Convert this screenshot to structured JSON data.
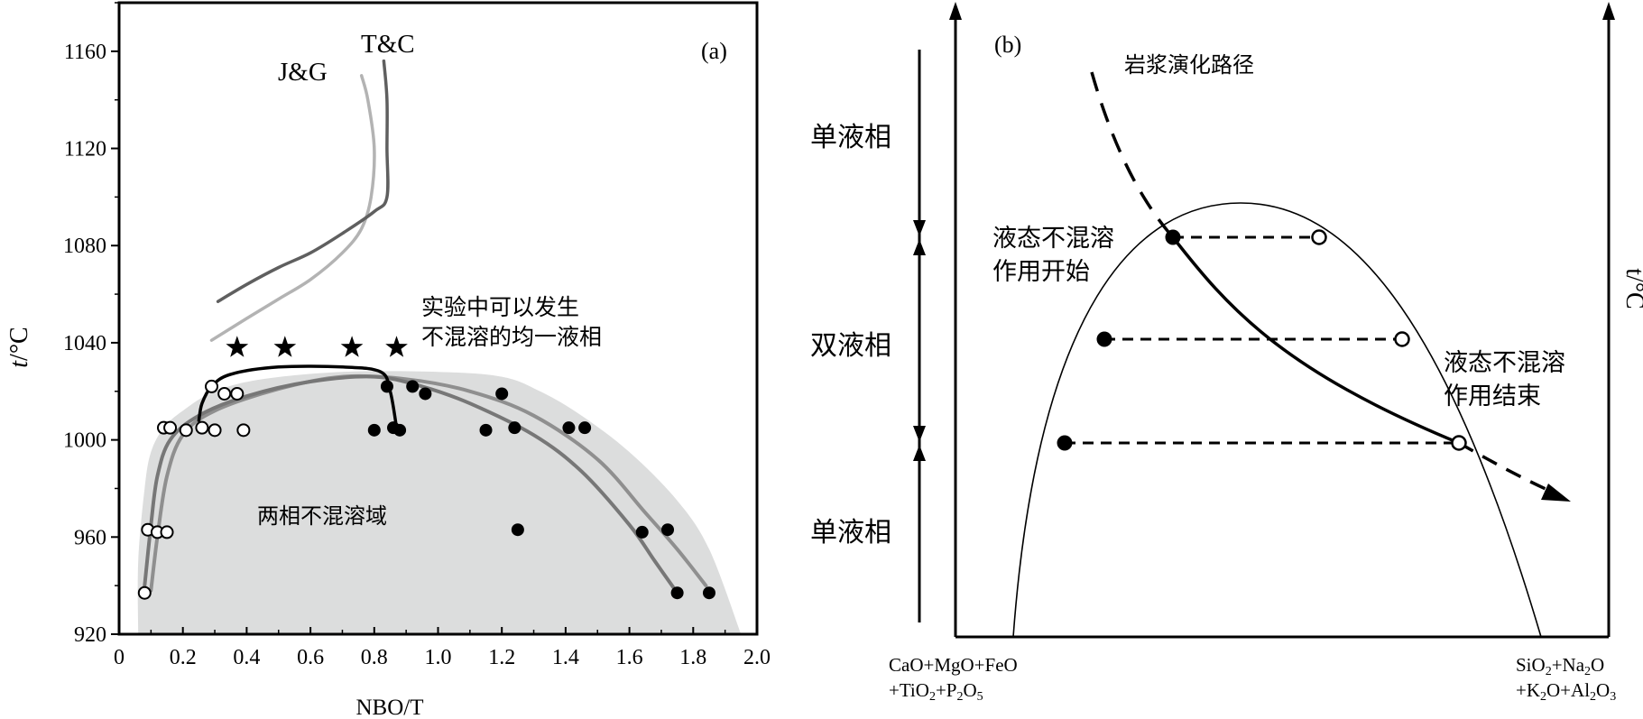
{
  "colors": {
    "region_fill": "#dcdddd",
    "jg_curve": "#b3b3b3",
    "tc_curve": "#5f5f5f",
    "mid_curve": "#777777",
    "black": "#000000"
  },
  "chart_data": [
    {
      "type": "scatter",
      "panel_label": "(a)",
      "xlabel": "NBO/T",
      "ylabel_italic": "t",
      "ylabel_unit": "/°C",
      "xlim": [
        0,
        2.0
      ],
      "ylim": [
        920,
        1180
      ],
      "x_ticks": [
        0,
        0.2,
        0.4,
        0.6,
        0.8,
        1.0,
        1.2,
        1.4,
        1.6,
        1.8,
        2.0
      ],
      "x_tick_labels": [
        "0",
        "0.2",
        "0.4",
        "0.6",
        "0.8",
        "1.0",
        "1.2",
        "1.4",
        "1.6",
        "1.8",
        "2.0"
      ],
      "y_ticks": [
        920,
        960,
        1000,
        1040,
        1080,
        1120,
        1160
      ],
      "y_tick_labels": [
        "920",
        "960",
        "1000",
        "1040",
        "1080",
        "1120",
        "1160"
      ],
      "region_label": "两相不混溶域",
      "star_label_line1": "实验中可以发生",
      "star_label_line2": "不混溶的均一液相",
      "curve_labels": [
        "J&G",
        "T&C"
      ],
      "region": [
        [
          0.06,
          920
        ],
        [
          0.06,
          950
        ],
        [
          0.08,
          980
        ],
        [
          0.1,
          995
        ],
        [
          0.14,
          1005
        ],
        [
          0.2,
          1012
        ],
        [
          0.3,
          1020
        ],
        [
          0.45,
          1025
        ],
        [
          0.7,
          1028
        ],
        [
          1.0,
          1028
        ],
        [
          1.2,
          1026
        ],
        [
          1.32,
          1020
        ],
        [
          1.45,
          1010
        ],
        [
          1.6,
          995
        ],
        [
          1.75,
          975
        ],
        [
          1.85,
          955
        ],
        [
          1.95,
          920
        ]
      ],
      "outer_curve": [
        [
          0.1,
          938
        ],
        [
          0.12,
          960
        ],
        [
          0.15,
          985
        ],
        [
          0.2,
          1002
        ],
        [
          0.3,
          1012
        ],
        [
          0.5,
          1021
        ],
        [
          0.7,
          1026
        ],
        [
          0.9,
          1025
        ],
        [
          1.1,
          1020
        ],
        [
          1.3,
          1010
        ],
        [
          1.5,
          992
        ],
        [
          1.65,
          970
        ],
        [
          1.75,
          955
        ],
        [
          1.84,
          940
        ]
      ],
      "inner_curve": [
        [
          0.08,
          940
        ],
        [
          0.1,
          965
        ],
        [
          0.12,
          985
        ],
        [
          0.16,
          1000
        ],
        [
          0.25,
          1010
        ],
        [
          0.4,
          1018
        ],
        [
          0.6,
          1024
        ],
        [
          0.8,
          1026
        ],
        [
          0.95,
          1022
        ],
        [
          1.1,
          1015
        ],
        [
          1.3,
          1002
        ],
        [
          1.45,
          987
        ],
        [
          1.6,
          965
        ],
        [
          1.68,
          950
        ],
        [
          1.75,
          937
        ]
      ],
      "black_curve": [
        [
          0.25,
          1008
        ],
        [
          0.26,
          1015
        ],
        [
          0.29,
          1022
        ],
        [
          0.35,
          1027
        ],
        [
          0.5,
          1030
        ],
        [
          0.7,
          1030
        ],
        [
          0.82,
          1028
        ],
        [
          0.85,
          1020
        ],
        [
          0.87,
          1005
        ]
      ],
      "jg_curve": [
        [
          0.29,
          1041
        ],
        [
          0.4,
          1050
        ],
        [
          0.5,
          1058
        ],
        [
          0.6,
          1066
        ],
        [
          0.7,
          1077
        ],
        [
          0.76,
          1087
        ],
        [
          0.79,
          1100
        ],
        [
          0.8,
          1120
        ],
        [
          0.78,
          1140
        ],
        [
          0.76,
          1150
        ]
      ],
      "tc_curve": [
        [
          0.31,
          1057
        ],
        [
          0.4,
          1064
        ],
        [
          0.5,
          1071
        ],
        [
          0.6,
          1077
        ],
        [
          0.7,
          1085
        ],
        [
          0.8,
          1094
        ],
        [
          0.84,
          1100
        ],
        [
          0.84,
          1120
        ],
        [
          0.84,
          1140
        ],
        [
          0.83,
          1156
        ]
      ],
      "stars": [
        [
          0.37,
          1038
        ],
        [
          0.52,
          1038
        ],
        [
          0.73,
          1038
        ],
        [
          0.87,
          1038
        ]
      ],
      "open_points": [
        [
          0.08,
          937
        ],
        [
          0.09,
          963
        ],
        [
          0.12,
          962
        ],
        [
          0.15,
          962
        ],
        [
          0.14,
          1005
        ],
        [
          0.16,
          1005
        ],
        [
          0.21,
          1004
        ],
        [
          0.26,
          1005
        ],
        [
          0.3,
          1004
        ],
        [
          0.39,
          1004
        ],
        [
          0.29,
          1022
        ],
        [
          0.33,
          1019
        ],
        [
          0.37,
          1019
        ]
      ],
      "filled_points": [
        [
          0.8,
          1004
        ],
        [
          0.86,
          1005
        ],
        [
          0.88,
          1004
        ],
        [
          0.84,
          1022
        ],
        [
          0.92,
          1022
        ],
        [
          0.96,
          1019
        ],
        [
          1.15,
          1004
        ],
        [
          1.2,
          1019
        ],
        [
          1.24,
          1005
        ],
        [
          1.25,
          963
        ],
        [
          1.41,
          1005
        ],
        [
          1.46,
          1005
        ],
        [
          1.64,
          962
        ],
        [
          1.72,
          963
        ],
        [
          1.75,
          937
        ],
        [
          1.85,
          937
        ]
      ]
    },
    {
      "type": "diagram",
      "panel_label": "(b)",
      "ylabel": "t/°C",
      "magma_path_label": "岩浆演化路径",
      "start_label_line1": "液态不混溶",
      "start_label_line2": "作用开始",
      "end_label_line1": "液态不混溶",
      "end_label_line2": "作用结束",
      "phase_labels": [
        "单液相",
        "双液相",
        "单液相"
      ],
      "x_left_line1": "CaO+MgO+FeO",
      "x_left_line2_parts": [
        "+TiO",
        "2",
        "+P",
        "2",
        "O",
        "5"
      ],
      "x_right_line1_parts": [
        "SiO",
        "2",
        "+Na",
        "2",
        "O"
      ],
      "x_right_line2_parts": [
        "+K",
        "2",
        "O+Al",
        "2",
        "O",
        "3"
      ]
    }
  ]
}
